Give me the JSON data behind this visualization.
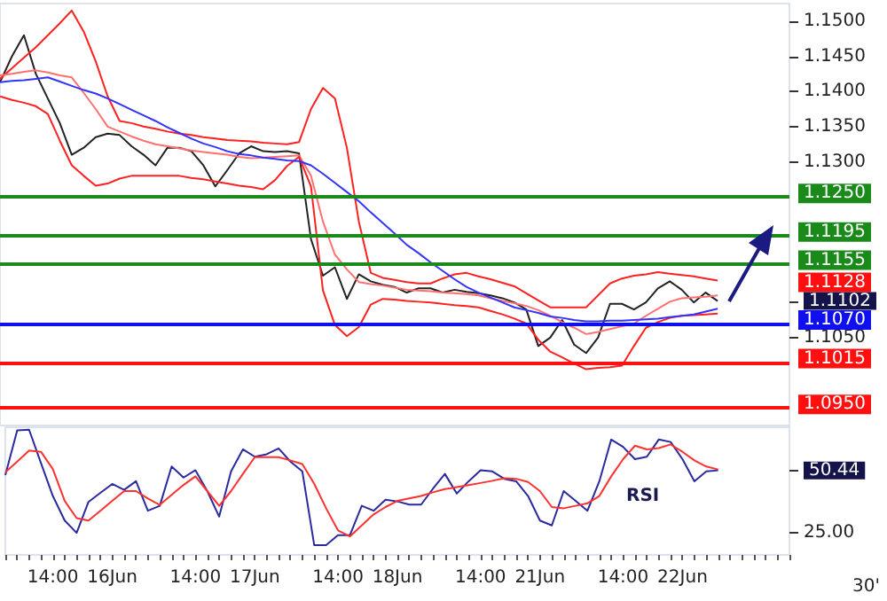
{
  "chart_data": [
    {
      "type": "line",
      "ylim": [
        1.0925,
        1.1525
      ],
      "tick_labels": "y",
      "categories": [
        null,
        null,
        null,
        null,
        null,
        null,
        null,
        null,
        null,
        null,
        null,
        null,
        null,
        null,
        null,
        null,
        null,
        null,
        null,
        null,
        null,
        null,
        null,
        null,
        null,
        null,
        null,
        null,
        null,
        null,
        null,
        null,
        null,
        null,
        null,
        null,
        null,
        null,
        null,
        null,
        null,
        null,
        null,
        null,
        null,
        null,
        null,
        null,
        null,
        null,
        null,
        null,
        null,
        null,
        null,
        null,
        null,
        null,
        null,
        null,
        null,
        null,
        null,
        null,
        null,
        null,
        null
      ],
      "yticks": [
        {
          "value": 1.105,
          "label": "1.1050"
        },
        {
          "value": 1.1102,
          "label": "1.1102"
        },
        {
          "value": 1.13,
          "label": "1.1300"
        },
        {
          "value": 1.135,
          "label": "1.1350"
        },
        {
          "value": 1.14,
          "label": "1.1400"
        },
        {
          "value": 1.145,
          "label": "1.1450"
        },
        {
          "value": 1.15,
          "label": "1.1500"
        }
      ],
      "series": [
        {
          "color": "#222222",
          "values": [
            1.1413,
            1.145,
            1.148,
            1.1425,
            1.139,
            1.1355,
            1.131,
            1.132,
            1.1335,
            1.134,
            1.1338,
            1.1322,
            1.131,
            1.1295,
            1.132,
            1.132,
            1.1315,
            1.1295,
            1.1265,
            1.1288,
            1.1312,
            1.1322,
            1.1315,
            1.1314,
            1.1315,
            1.1312,
            1.119,
            1.1138,
            1.115,
            1.1105,
            1.114,
            1.113,
            1.1125,
            1.1122,
            1.1114,
            1.112,
            1.112,
            1.1114,
            1.1118,
            1.1115,
            1.1113,
            1.111,
            1.1106,
            1.11,
            1.109,
            1.1038,
            1.105,
            1.1075,
            1.104,
            1.1028,
            1.105,
            1.1098,
            1.1098,
            1.109,
            1.11,
            1.112,
            1.113,
            1.1118,
            1.11,
            1.1114,
            1.1102,
            null,
            null,
            null,
            null,
            null,
            null
          ]
        },
        {
          "color": "#ff2020",
          "values": [
            1.1418,
            1.1433,
            1.1448,
            1.1463,
            1.148,
            1.1497,
            1.1515,
            1.1485,
            1.1443,
            1.1393,
            1.1358,
            1.1355,
            1.135,
            1.1347,
            1.1343,
            1.134,
            1.1338,
            1.1335,
            1.1333,
            1.1331,
            1.133,
            1.1329,
            1.1327,
            1.1326,
            1.1325,
            1.1328,
            1.1375,
            1.1405,
            1.139,
            1.132,
            1.1215,
            1.1142,
            1.1135,
            1.1132,
            1.1129,
            1.1127,
            1.1127,
            1.1134,
            1.114,
            1.1142,
            1.1137,
            1.1133,
            1.1128,
            1.1123,
            1.1113,
            1.1103,
            1.1093,
            1.1093,
            1.1093,
            1.1093,
            1.111,
            1.1127,
            1.1134,
            1.1138,
            1.114,
            1.1143,
            1.1141,
            1.1139,
            1.1137,
            1.1134,
            1.1131,
            null,
            null,
            null,
            null,
            null,
            null
          ]
        },
        {
          "color": "#ff7070",
          "values": [
            1.1423,
            1.1425,
            1.1428,
            1.143,
            1.1427,
            1.1423,
            1.142,
            1.1398,
            1.1375,
            1.135,
            1.1343,
            1.1336,
            1.133,
            1.1325,
            1.1322,
            1.1319,
            1.1316,
            1.1314,
            1.1312,
            1.131,
            1.1307,
            1.1305,
            1.1306,
            1.1307,
            1.1308,
            1.1309,
            1.128,
            1.1215,
            1.1168,
            1.1147,
            1.1129,
            1.1126,
            1.1124,
            1.1121,
            1.1118,
            1.1117,
            1.1116,
            1.1114,
            1.1113,
            1.1112,
            1.111,
            1.1106,
            1.1102,
            1.1099,
            1.1095,
            1.1089,
            1.1081,
            1.1072,
            1.1064,
            1.1055,
            1.1058,
            1.1062,
            1.1066,
            1.107,
            1.1081,
            1.1091,
            1.1101,
            1.1106,
            1.1107,
            1.1108,
            1.111,
            null,
            null,
            null,
            null,
            null,
            null
          ]
        },
        {
          "color": "#ff2020",
          "values": [
            1.1393,
            1.1388,
            1.1384,
            1.1379,
            1.1368,
            1.133,
            1.1295,
            1.128,
            1.1266,
            1.1269,
            1.1276,
            1.128,
            1.128,
            1.128,
            1.128,
            1.128,
            1.1277,
            1.1275,
            1.1272,
            1.1269,
            1.1266,
            1.1264,
            1.1261,
            1.1274,
            1.1294,
            1.1307,
            1.1265,
            1.1117,
            1.1068,
            1.1052,
            1.1065,
            1.1097,
            1.1105,
            1.1104,
            1.1102,
            1.1101,
            1.11,
            1.1098,
            1.1096,
            1.1095,
            1.1093,
            1.1088,
            1.1083,
            1.1077,
            1.107,
            1.1047,
            1.103,
            1.1022,
            1.1013,
            1.1005,
            1.1007,
            1.1008,
            1.101,
            1.1038,
            1.1064,
            1.1072,
            1.1078,
            1.1081,
            1.1082,
            1.1083,
            1.1084,
            null,
            null,
            null,
            null,
            null,
            null
          ]
        },
        {
          "color": "#3333ff",
          "values": [
            1.1413,
            1.1415,
            1.1416,
            1.1418,
            1.142,
            1.1414,
            1.1408,
            1.1402,
            1.1397,
            1.139,
            1.1382,
            1.1374,
            1.1366,
            1.1358,
            1.1349,
            1.1341,
            1.1333,
            1.1326,
            1.1321,
            1.1315,
            1.1311,
            1.1309,
            1.1306,
            1.1304,
            1.1302,
            1.1301,
            1.1295,
            1.1283,
            1.127,
            1.1257,
            1.1244,
            1.1228,
            1.1213,
            1.1198,
            1.1182,
            1.117,
            1.1157,
            1.1145,
            1.1133,
            1.1122,
            1.1114,
            1.1107,
            1.11,
            1.1093,
            1.1089,
            1.1085,
            1.108,
            1.1078,
            1.1075,
            1.1073,
            1.1073,
            1.1074,
            1.1074,
            1.1075,
            1.1076,
            1.1077,
            1.1079,
            1.1081,
            1.1083,
            1.1087,
            1.1091,
            null,
            null,
            null,
            null,
            null,
            null
          ]
        }
      ],
      "ref_lines": [
        {
          "axis": "y",
          "value": 1.125,
          "label": "1.1250",
          "color": "#1a8a1a"
        },
        {
          "axis": "y",
          "value": 1.1195,
          "label": "1.1195",
          "color": "#1a8a1a"
        },
        {
          "axis": "y",
          "value": 1.1155,
          "label": "1.1155",
          "color": "#1a8a1a"
        },
        {
          "axis": "y",
          "value": 1.107,
          "label": "1.1070",
          "color": "#1010ee"
        },
        {
          "axis": "y",
          "value": 1.1015,
          "label": "1.1015",
          "color": "#ff1010"
        },
        {
          "axis": "y",
          "value": 1.095,
          "label": "1.0950",
          "color": "#ff1010"
        }
      ],
      "annotations": [
        "1.1128"
      ]
    },
    {
      "type": "line",
      "ylim": [
        16,
        68
      ],
      "categories": [
        null,
        null,
        null,
        null,
        "14:00",
        null,
        null,
        null,
        null,
        "16Jun",
        null,
        null,
        null,
        null,
        null,
        null,
        "14:00",
        null,
        null,
        null,
        null,
        "17Jun",
        null,
        null,
        null,
        null,
        null,
        null,
        "14:00",
        null,
        null,
        null,
        null,
        "18Jun",
        null,
        null,
        null,
        null,
        null,
        null,
        "14:00",
        null,
        null,
        null,
        null,
        "21Jun",
        null,
        null,
        null,
        null,
        null,
        null,
        "14:00",
        null,
        null,
        null,
        null,
        "22Jun",
        null,
        null,
        null,
        null,
        null,
        null,
        null,
        null,
        null
      ],
      "yticks": [
        {
          "value": 25,
          "label": "25.00"
        },
        {
          "value": 50.44,
          "label": "50.44"
        }
      ],
      "series": [
        {
          "color": "#2a2aa0",
          "values": [
            48.5,
            66.7,
            67,
            53.4,
            40,
            30,
            25,
            37.6,
            41.3,
            44.9,
            42.5,
            46,
            34,
            36,
            52,
            47.5,
            50.5,
            42,
            31.6,
            50,
            59,
            56,
            57,
            59.4,
            54,
            50,
            20,
            20,
            24,
            24,
            36,
            34,
            38.5,
            37.8,
            36.5,
            36.5,
            43,
            49,
            41,
            46,
            50.5,
            50,
            47,
            46,
            40,
            30,
            28,
            42,
            38,
            34,
            46,
            63,
            60,
            55,
            56,
            63,
            62,
            55,
            46,
            50,
            50.44,
            null,
            null,
            null,
            null,
            null,
            null
          ]
        },
        {
          "color": "#ff3030",
          "values": [
            49.7,
            54,
            58.5,
            58,
            51,
            38,
            31,
            30,
            34,
            38,
            42,
            42,
            39,
            36.4,
            40.5,
            44.5,
            48,
            42,
            36,
            42,
            49,
            55.8,
            55.8,
            55.8,
            54.5,
            53,
            45,
            35,
            26,
            23.5,
            28,
            32.5,
            35.5,
            38,
            39,
            40,
            41.5,
            42.8,
            43.6,
            44.4,
            45.3,
            46.2,
            47.2,
            47,
            45.7,
            42,
            35.5,
            35,
            36,
            37,
            40,
            48,
            55,
            60.5,
            59,
            59.5,
            61,
            58,
            54.5,
            52,
            50.8,
            null,
            null,
            null,
            null,
            null,
            null
          ]
        }
      ],
      "annotations": [
        "RSI",
        "30'"
      ]
    }
  ]
}
